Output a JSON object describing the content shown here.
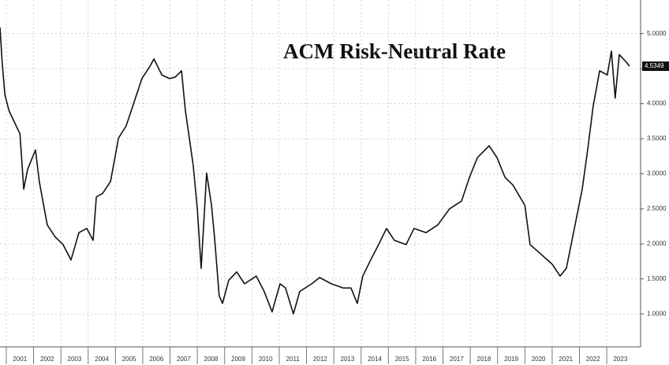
{
  "chart_data": {
    "type": "line",
    "title": "ACM Risk-Neutral Rate",
    "x": [
      2000.77,
      2000.85,
      2000.95,
      2001.1,
      2001.5,
      2001.64,
      2001.78,
      2002.07,
      2002.21,
      2002.5,
      2002.79,
      2003.08,
      2003.37,
      2003.66,
      2003.95,
      2004.18,
      2004.3,
      2004.53,
      2004.82,
      2005.11,
      2005.39,
      2005.68,
      2005.97,
      2006.26,
      2006.41,
      2006.7,
      2006.98,
      2007.19,
      2007.42,
      2007.56,
      2007.85,
      2008.0,
      2008.14,
      2008.34,
      2008.52,
      2008.63,
      2008.8,
      2008.92,
      2009.15,
      2009.44,
      2009.73,
      2010.16,
      2010.45,
      2010.74,
      2011.03,
      2011.23,
      2011.52,
      2011.75,
      2012.19,
      2012.48,
      2012.91,
      2013.34,
      2013.63,
      2013.86,
      2014.06,
      2014.35,
      2014.64,
      2014.93,
      2015.22,
      2015.65,
      2015.94,
      2016.38,
      2016.81,
      2017.24,
      2017.68,
      2017.97,
      2018.26,
      2018.69,
      2018.98,
      2019.27,
      2019.56,
      2020.0,
      2020.19,
      2020.57,
      2021.0,
      2021.29,
      2021.52,
      2021.87,
      2022.1,
      2022.3,
      2022.5,
      2022.74,
      2023.02,
      2023.17,
      2023.31,
      2023.46,
      2023.75,
      2023.83
    ],
    "series": [
      {
        "color": "#111111",
        "values": [
          5.09,
          4.58,
          4.13,
          3.9,
          3.57,
          2.78,
          3.06,
          3.34,
          2.89,
          2.27,
          2.1,
          1.99,
          1.77,
          2.16,
          2.22,
          2.05,
          2.67,
          2.72,
          2.89,
          3.51,
          3.68,
          4.02,
          4.36,
          4.53,
          4.64,
          4.41,
          4.36,
          4.38,
          4.47,
          3.91,
          3.12,
          2.5,
          1.65,
          3.01,
          2.55,
          2.1,
          1.26,
          1.15,
          1.48,
          1.6,
          1.43,
          1.54,
          1.32,
          1.03,
          1.43,
          1.37,
          1.0,
          1.32,
          1.43,
          1.52,
          1.43,
          1.37,
          1.37,
          1.15,
          1.54,
          1.77,
          1.99,
          2.22,
          2.05,
          1.99,
          2.22,
          2.16,
          2.27,
          2.5,
          2.61,
          2.95,
          3.23,
          3.4,
          3.23,
          2.95,
          2.84,
          2.55,
          1.99,
          1.86,
          1.71,
          1.54,
          1.65,
          2.33,
          2.78,
          3.34,
          3.96,
          4.47,
          4.41,
          4.75,
          4.08,
          4.7,
          4.58,
          4.5349
        ]
      }
    ],
    "xlim": [
      2000.77,
      2024.24
    ],
    "xticks": [
      2001,
      2002,
      2003,
      2004,
      2005,
      2006,
      2007,
      2008,
      2009,
      2010,
      2011,
      2012,
      2013,
      2014,
      2015,
      2016,
      2017,
      2018,
      2019,
      2020,
      2021,
      2022,
      2023
    ],
    "ylim": [
      0.53,
      5.48
    ],
    "yticks": [
      {
        "value": 1,
        "label": "1.0000"
      },
      {
        "value": 1.5,
        "label": "1.5000"
      },
      {
        "value": 2,
        "label": "2.0000"
      },
      {
        "value": 2.5,
        "label": "2.5000"
      },
      {
        "value": 3,
        "label": "3.0000"
      },
      {
        "value": 3.5,
        "label": "3.5000"
      },
      {
        "value": 4,
        "label": "4.0000"
      },
      {
        "value": 4.5,
        "label": "4.5000"
      },
      {
        "value": 5,
        "label": "5.0000"
      }
    ],
    "grid": true
  }
}
